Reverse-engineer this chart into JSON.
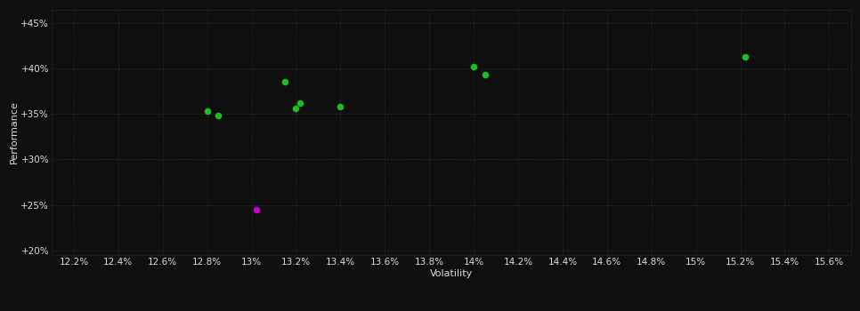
{
  "green_points": [
    [
      12.8,
      35.3
    ],
    [
      12.85,
      34.8
    ],
    [
      13.15,
      38.5
    ],
    [
      13.2,
      35.6
    ],
    [
      13.22,
      36.2
    ],
    [
      13.4,
      35.8
    ],
    [
      14.0,
      40.2
    ],
    [
      14.05,
      39.3
    ],
    [
      15.22,
      41.3
    ]
  ],
  "magenta_points": [
    [
      13.02,
      24.5
    ]
  ],
  "green_color": "#22bb22",
  "magenta_color": "#cc00cc",
  "background_color": "#0f0f0f",
  "plot_bg_color": "#0f0f0f",
  "text_color": "#dddddd",
  "xlabel": "Volatility",
  "ylabel": "Performance",
  "xlim": [
    12.1,
    15.7
  ],
  "ylim": [
    19.5,
    46.5
  ],
  "xtick_labels": [
    "12.2%",
    "12.4%",
    "12.6%",
    "12.8%",
    "13%",
    "13.2%",
    "13.4%",
    "13.6%",
    "13.8%",
    "14%",
    "14.2%",
    "14.4%",
    "14.6%",
    "14.8%",
    "15%",
    "15.2%",
    "15.4%",
    "15.6%"
  ],
  "xtick_values": [
    12.2,
    12.4,
    12.6,
    12.8,
    13.0,
    13.2,
    13.4,
    13.6,
    13.8,
    14.0,
    14.2,
    14.4,
    14.6,
    14.8,
    15.0,
    15.2,
    15.4,
    15.6
  ],
  "ytick_labels": [
    "+20%",
    "+25%",
    "+30%",
    "+35%",
    "+40%",
    "+45%"
  ],
  "ytick_values": [
    20,
    25,
    30,
    35,
    40,
    45
  ],
  "marker_size": 30,
  "axis_label_fontsize": 8,
  "tick_fontsize": 7.5
}
